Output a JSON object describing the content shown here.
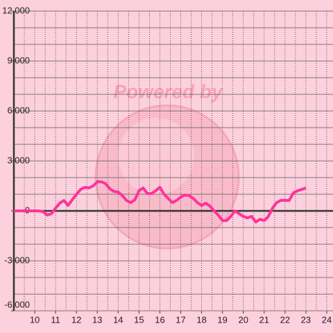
{
  "chart_data": {
    "type": "line",
    "watermark": "Powered by",
    "x": [
      9.0,
      9.2,
      9.4,
      9.6,
      9.8,
      10.0,
      10.2,
      10.4,
      10.6,
      10.8,
      11.0,
      11.2,
      11.4,
      11.6,
      11.8,
      12.0,
      12.2,
      12.4,
      12.6,
      12.8,
      13.0,
      13.2,
      13.4,
      13.6,
      13.8,
      14.0,
      14.2,
      14.4,
      14.6,
      14.8,
      15.0,
      15.2,
      15.4,
      15.6,
      15.8,
      16.0,
      16.2,
      16.4,
      16.6,
      16.8,
      17.0,
      17.2,
      17.4,
      17.6,
      17.8,
      18.0,
      18.2,
      18.4,
      18.6,
      18.8,
      19.0,
      19.2,
      19.4,
      19.6,
      19.8,
      20.0,
      20.2,
      20.4,
      20.6,
      20.8,
      21.0,
      21.2,
      21.4,
      21.6,
      21.8,
      22.0,
      22.2,
      22.4,
      22.6,
      22.8,
      23.0
    ],
    "series": [
      {
        "color": "#ff3399",
        "values": [
          0,
          0,
          0,
          0,
          0,
          0,
          0,
          -50,
          -250,
          -170,
          170,
          460,
          630,
          330,
          670,
          1000,
          1290,
          1420,
          1380,
          1500,
          1750,
          1750,
          1630,
          1330,
          1170,
          1130,
          920,
          630,
          500,
          670,
          1210,
          1380,
          1040,
          1040,
          1210,
          1420,
          1000,
          750,
          500,
          630,
          830,
          960,
          920,
          750,
          500,
          330,
          460,
          290,
          0,
          -250,
          -580,
          -580,
          -330,
          0,
          -170,
          -330,
          -420,
          -330,
          -670,
          -500,
          -580,
          -330,
          170,
          500,
          630,
          630,
          630,
          1080,
          1210,
          1290,
          1380
        ]
      }
    ],
    "xlim": [
      9,
      24.3
    ],
    "ylim": [
      -6000,
      12000
    ],
    "xticks": [
      10,
      11,
      12,
      13,
      14,
      15,
      16,
      17,
      18,
      19,
      20,
      21,
      22,
      23,
      24
    ],
    "yticks": [
      {
        "value": -6000,
        "label": "-6,000"
      },
      {
        "value": -3000,
        "label": "-3,000"
      },
      0,
      {
        "value": 3000,
        "label": "3,000"
      },
      {
        "value": 6000,
        "label": "6,000"
      },
      {
        "value": 9000,
        "label": "9,000"
      },
      {
        "value": 12000,
        "label": "12,000"
      }
    ],
    "minor_grid": {
      "x": 0.5,
      "y": 1000
    },
    "grid": true
  }
}
